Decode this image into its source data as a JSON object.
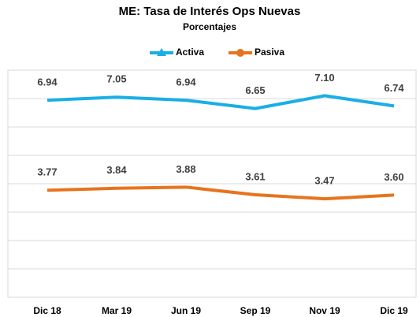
{
  "chart_data": {
    "type": "line",
    "title": "ME: Tasa de Interés Ops Nuevas",
    "subtitle": "Porcentajes",
    "categories": [
      "Dic 18",
      "Mar 19",
      "Jun 19",
      "Sep 19",
      "Nov 19",
      "Dic 19"
    ],
    "series": [
      {
        "name": "Activa",
        "color": "#1aaee6",
        "values": [
          6.94,
          7.05,
          6.94,
          6.65,
          7.1,
          6.74
        ],
        "value_labels": [
          "6.94",
          "7.05",
          "6.94",
          "6.65",
          "7.10",
          "6.74"
        ]
      },
      {
        "name": "Pasiva",
        "color": "#e8731e",
        "values": [
          3.77,
          3.84,
          3.88,
          3.61,
          3.47,
          3.6
        ],
        "value_labels": [
          "3.77",
          "3.84",
          "3.88",
          "3.61",
          "3.47",
          "3.60"
        ]
      }
    ],
    "ylim": [
      0,
      8
    ],
    "yticks": [
      0,
      1,
      2,
      3,
      4,
      5,
      6,
      7,
      8
    ],
    "grid": true,
    "legend": "top"
  }
}
